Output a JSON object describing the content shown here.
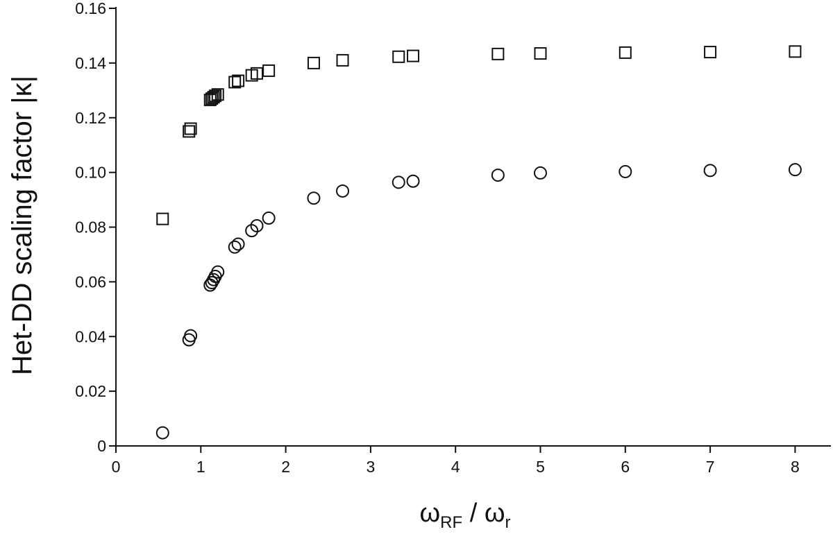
{
  "chart_data": {
    "type": "scatter",
    "title": "",
    "xlabel": {
      "main": "ω",
      "sub1": "RF",
      "sep": " / ω",
      "sub2": "r"
    },
    "ylabel": "Het-DD scaling factor |κ|",
    "xlim": [
      0,
      8.4
    ],
    "ylim": [
      0,
      0.16
    ],
    "x_ticks": [
      0,
      1,
      2,
      3,
      4,
      5,
      6,
      7,
      8
    ],
    "x_tick_labels": [
      "0",
      "1",
      "2",
      "3",
      "4",
      "5",
      "6",
      "7",
      "8"
    ],
    "y_ticks": [
      0,
      0.02,
      0.04,
      0.06,
      0.08,
      0.1,
      0.12,
      0.14,
      0.16
    ],
    "y_tick_labels": [
      "0",
      "0.02",
      "0.04",
      "0.06",
      "0.08",
      "0.10",
      "0.12",
      "0.14",
      "0.16"
    ],
    "grid": false,
    "series": [
      {
        "marker": "square",
        "color": "#111111",
        "points": [
          [
            0.55,
            0.083
          ],
          [
            0.86,
            0.115
          ],
          [
            0.88,
            0.116
          ],
          [
            1.11,
            0.1265
          ],
          [
            1.13,
            0.127
          ],
          [
            1.15,
            0.1275
          ],
          [
            1.17,
            0.128
          ],
          [
            1.2,
            0.1285
          ],
          [
            1.4,
            0.133
          ],
          [
            1.44,
            0.1335
          ],
          [
            1.6,
            0.1355
          ],
          [
            1.66,
            0.1362
          ],
          [
            1.8,
            0.1372
          ],
          [
            2.33,
            0.14
          ],
          [
            2.67,
            0.141
          ],
          [
            3.33,
            0.1423
          ],
          [
            3.5,
            0.1426
          ],
          [
            4.5,
            0.1433
          ],
          [
            5.0,
            0.1435
          ],
          [
            6.0,
            0.1438
          ],
          [
            7.0,
            0.144
          ],
          [
            8.0,
            0.1442
          ]
        ]
      },
      {
        "marker": "circle",
        "color": "#111111",
        "points": [
          [
            0.55,
            0.0048
          ],
          [
            0.86,
            0.0388
          ],
          [
            0.88,
            0.0403
          ],
          [
            1.11,
            0.0588
          ],
          [
            1.13,
            0.0597
          ],
          [
            1.15,
            0.0608
          ],
          [
            1.17,
            0.062
          ],
          [
            1.2,
            0.0636
          ],
          [
            1.4,
            0.0727
          ],
          [
            1.44,
            0.0738
          ],
          [
            1.6,
            0.0787
          ],
          [
            1.66,
            0.0805
          ],
          [
            1.8,
            0.0833
          ],
          [
            2.33,
            0.0906
          ],
          [
            2.67,
            0.0932
          ],
          [
            3.33,
            0.0964
          ],
          [
            3.5,
            0.0968
          ],
          [
            4.5,
            0.099
          ],
          [
            5.0,
            0.0998
          ],
          [
            6.0,
            0.1003
          ],
          [
            7.0,
            0.1007
          ],
          [
            8.0,
            0.101
          ]
        ]
      }
    ]
  }
}
